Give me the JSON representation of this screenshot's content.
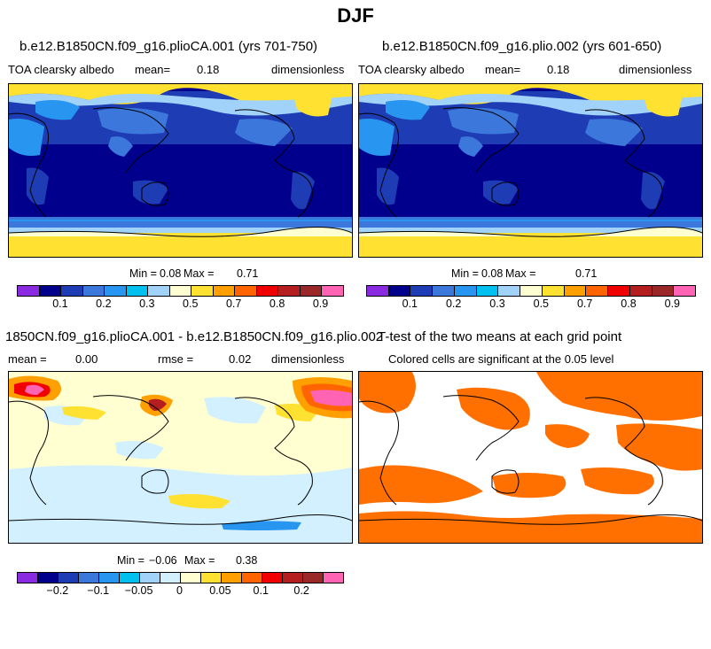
{
  "title": "DJF",
  "panels": {
    "p1": {
      "case": "b.e12.B1850CN.f09_g16.plioCA.001 (yrs 701-750)",
      "variable": "TOA clearsky albedo",
      "mean_label": "mean=",
      "mean_value": "0.18",
      "units": "dimensionless",
      "min_label": "Min =",
      "min_value": "0.08",
      "max_label": "Max =",
      "max_value": "0.71"
    },
    "p2": {
      "case": "b.e12.B1850CN.f09_g16.plio.002 (yrs 601-650)",
      "variable": "TOA clearsky albedo",
      "mean_label": "mean=",
      "mean_value": "0.18",
      "units": "dimensionless",
      "min_label": "Min =",
      "min_value": "0.08",
      "max_label": "Max =",
      "max_value": "0.71"
    },
    "p3": {
      "case": "1850CN.f09_g16.plioCA.001 - b.e12.B1850CN.f09_g16.plio.002",
      "mean_label": "mean =",
      "mean_value": "0.00",
      "rmse_label": "rmse =",
      "rmse_value": "0.02",
      "units": "dimensionless",
      "min_label": "Min =",
      "min_value": "−0.06",
      "max_label": "Max =",
      "max_value": "0.38"
    },
    "p4": {
      "title": "T-test of the two means at each grid point",
      "subtitle": "Colored cells are significant at the 0.05 level",
      "significant_color": "#ff7000"
    }
  },
  "colorbars": {
    "abs": {
      "colors": [
        "#8a2be2",
        "#00008c",
        "#1e3cb4",
        "#3c78dc",
        "#2896f0",
        "#00c0f0",
        "#a0d2fa",
        "#ffffd2",
        "#ffe132",
        "#ffa000",
        "#ff6400",
        "#f00000",
        "#b41e1e",
        "#9b2828",
        "#ff64b4"
      ],
      "labels": [
        "0.1",
        "0.2",
        "0.3",
        "0.5",
        "0.7",
        "0.8",
        "0.9"
      ]
    },
    "diff": {
      "colors": [
        "#8a2be2",
        "#00008c",
        "#1e3cb4",
        "#3c78dc",
        "#2896f0",
        "#00c0f0",
        "#a0d2fa",
        "#d2f0ff",
        "#ffffd2",
        "#ffe132",
        "#ffa000",
        "#ff6400",
        "#f00000",
        "#b41e1e",
        "#9b2828",
        "#ff64b4"
      ],
      "labels": [
        "−0.2",
        "−0.1",
        "−0.05",
        "0",
        "0.05",
        "0.1",
        "0.2"
      ]
    }
  }
}
